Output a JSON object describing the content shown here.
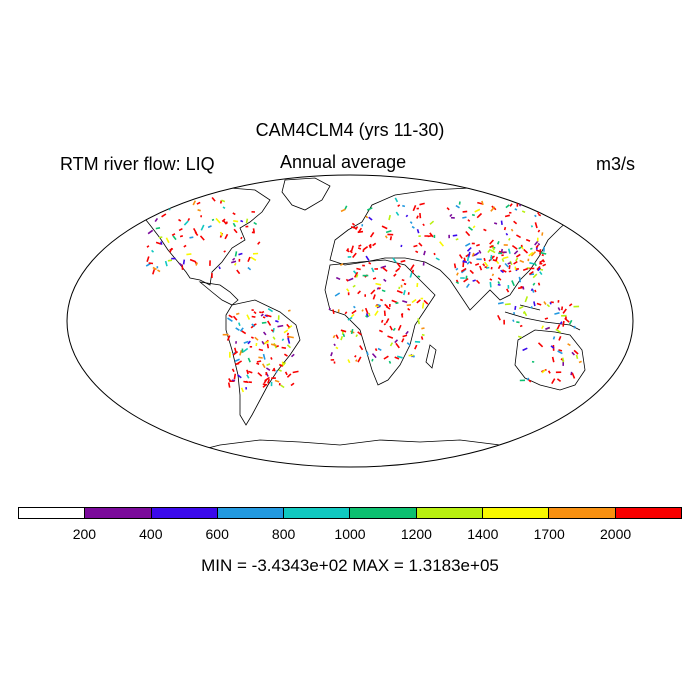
{
  "title": "CAM4CLM4 (yrs 11-30)",
  "left_string": "RTM river flow: LIQ",
  "center_string": "Annual average",
  "units": "m3/s",
  "colorbar": {
    "colors": [
      "#ffffff",
      "#7b0a9b",
      "#3b0aeb",
      "#2299e0",
      "#10c8c0",
      "#0cc070",
      "#b8f010",
      "#f8f800",
      "#f89010",
      "#f80000"
    ],
    "tick_labels": [
      "200",
      "400",
      "600",
      "800",
      "1000",
      "1200",
      "1400",
      "1700",
      "2000"
    ]
  },
  "minmax": "MIN = -3.4343e+02  MAX = 1.3183e+05"
}
